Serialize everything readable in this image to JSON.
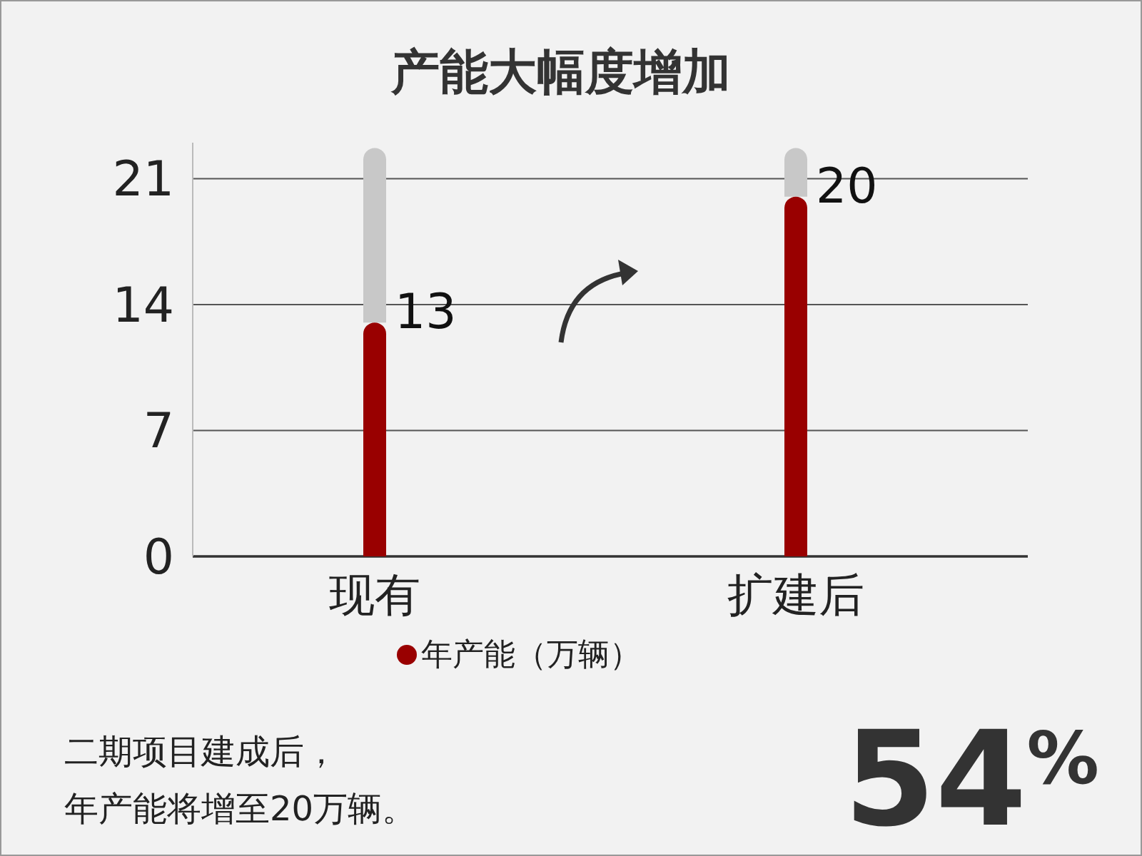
{
  "chart_data": {
    "type": "bar",
    "title": "产能大幅度增加",
    "categories": [
      "现有",
      "扩建后"
    ],
    "series": [
      {
        "name": "年产能（万辆）",
        "color": "#990000",
        "values": [
          13,
          20
        ],
        "value_labels": [
          "13",
          "20"
        ]
      },
      {
        "color": "#c8c8c8",
        "values": [
          9.7,
          2.7
        ]
      }
    ],
    "stacked": true,
    "ylim": [
      0,
      23
    ],
    "yticks": [
      0,
      7,
      14,
      21
    ],
    "grid": "y",
    "legend": "bottom",
    "annotations": [
      "二期项目建成后，",
      "年产能将增至20万辆。",
      "54$^{%}$"
    ]
  }
}
